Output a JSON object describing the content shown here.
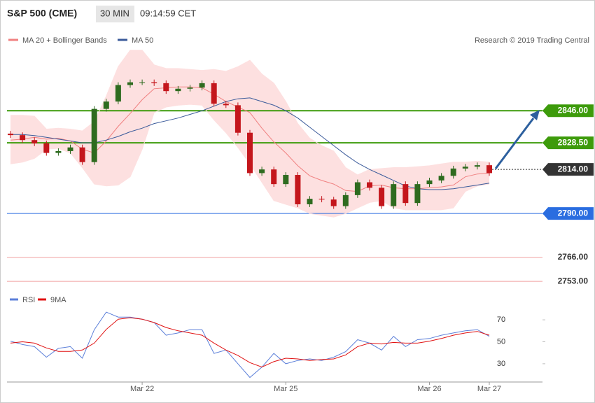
{
  "header": {
    "title": "S&P 500 (CME)",
    "timeframe": "30 MIN",
    "time": "09:14:59 CET"
  },
  "chart_data": [
    {
      "type": "candlestick",
      "credit": "Research © 2019 Trading Central",
      "ylim": [
        2750,
        2893
      ],
      "up_color": "#2e6b1f",
      "down_color": "#c4161c",
      "open": [
        2833.5,
        2832.7,
        2830,
        2828.2,
        2823,
        2824,
        2826,
        2818,
        2847,
        2851,
        2860,
        2861.5,
        2861.5,
        2861,
        2856.7,
        2858,
        2858.6,
        2861,
        2849.8,
        2849,
        2834,
        2812,
        2814,
        2806,
        2811,
        2795,
        2798,
        2797.6,
        2794,
        2800,
        2807,
        2804,
        2794,
        2806,
        2795.7,
        2806,
        2808,
        2810.5,
        2814.5,
        2815.5,
        2816.3
      ],
      "high": [
        2835,
        2834.2,
        2831.5,
        2829.7,
        2825.5,
        2827.5,
        2827.5,
        2848.5,
        2852.5,
        2861.5,
        2863,
        2863,
        2863,
        2862.5,
        2859.5,
        2860.1,
        2862.5,
        2862.5,
        2851.3,
        2850.5,
        2835.5,
        2815.5,
        2815.5,
        2812.5,
        2812.5,
        2799.5,
        2799.5,
        2799.1,
        2801.5,
        2808.5,
        2808.5,
        2805.5,
        2807.5,
        2807.5,
        2807.5,
        2809.5,
        2812,
        2816,
        2817,
        2817.8,
        2817.8
      ],
      "low": [
        2831.2,
        2828.5,
        2826.7,
        2821.5,
        2821.5,
        2822.5,
        2816.5,
        2816.5,
        2845.5,
        2849.5,
        2858.5,
        2860,
        2859.5,
        2855.2,
        2855.2,
        2856.5,
        2857.1,
        2848.3,
        2847.5,
        2832.5,
        2810.5,
        2810.5,
        2804.5,
        2804.5,
        2793.5,
        2793.5,
        2796.1,
        2792.5,
        2792.5,
        2798.5,
        2802.5,
        2792.5,
        2792.5,
        2794.2,
        2794.2,
        2804.5,
        2806.5,
        2809,
        2813,
        2814,
        2810.5
      ],
      "close": [
        2832.7,
        2830,
        2828.2,
        2823,
        2824,
        2826,
        2818,
        2847,
        2851,
        2860,
        2861.5,
        2861.5,
        2861,
        2856.7,
        2858,
        2858.6,
        2861,
        2849.8,
        2849,
        2834,
        2812,
        2814,
        2806,
        2811,
        2795,
        2798,
        2797.6,
        2794,
        2800,
        2807,
        2804,
        2794,
        2806,
        2795.7,
        2806,
        2808,
        2810.5,
        2814.5,
        2815.5,
        2816.3,
        2812
      ],
      "series": [
        {
          "name": "MA 20 + Bollinger Bands",
          "color": "#f08080",
          "band_color": "#fde0e0",
          "values": [
            2830,
            2830.5,
            2831.5,
            2830.5,
            2831,
            2829.5,
            2825,
            2823,
            2829.5,
            2837.5,
            2844.5,
            2852,
            2858,
            2858.5,
            2859,
            2859,
            2858.5,
            2855,
            2851,
            2848,
            2845,
            2836.5,
            2829,
            2823,
            2816,
            2810.5,
            2808,
            2806,
            2802.5,
            2802,
            2805,
            2805.5,
            2804,
            2803.5,
            2803.5,
            2804,
            2804.5,
            2805.5,
            2810,
            2811.5,
            2812
          ],
          "upper": [
            2843.5,
            2843.5,
            2843,
            2836,
            2836.5,
            2836,
            2835,
            2840,
            2854,
            2870,
            2879,
            2879,
            2871,
            2869,
            2869,
            2868.5,
            2868,
            2868.5,
            2867.5,
            2870,
            2873.5,
            2866,
            2861,
            2851,
            2839,
            2831,
            2827,
            2824,
            2815,
            2811,
            2814,
            2814.5,
            2815,
            2815,
            2815.5,
            2816,
            2817,
            2818,
            2818,
            2818.5,
            2818
          ],
          "lower": [
            2817,
            2818,
            2820,
            2825,
            2825.5,
            2823,
            2815,
            2806,
            2805,
            2805.5,
            2810,
            2825,
            2845,
            2848,
            2849,
            2849.5,
            2849,
            2841,
            2834,
            2826,
            2817,
            2807,
            2797,
            2795,
            2793,
            2790,
            2789,
            2788,
            2790,
            2793,
            2796,
            2797,
            2793,
            2792,
            2792,
            2792,
            2792,
            2793,
            2802,
            2805,
            2806
          ]
        },
        {
          "name": "MA 50",
          "color": "#3a5a9a",
          "values": [
            2833,
            2833,
            2832.5,
            2831.5,
            2830.5,
            2829.5,
            2828.5,
            2828.5,
            2830,
            2832,
            2834.5,
            2836.5,
            2839,
            2840.5,
            2842,
            2844,
            2846,
            2848.5,
            2851,
            2852.5,
            2853,
            2851,
            2849,
            2846,
            2842,
            2837,
            2832,
            2827,
            2822,
            2817.5,
            2814,
            2811,
            2808,
            2805,
            2803.5,
            2803,
            2803,
            2803.5,
            2804.5,
            2805.5,
            2806.5
          ]
        }
      ],
      "levels": [
        {
          "value": 2846,
          "label": "2846.00",
          "color": "#3d9b0b",
          "boxed": true,
          "width": 2
        },
        {
          "value": 2828.5,
          "label": "2828.50",
          "color": "#3d9b0b",
          "boxed": true,
          "width": 2
        },
        {
          "value": 2814,
          "label": "2814.00",
          "color": "#333333",
          "boxed": true,
          "width": 1,
          "dotted": true
        },
        {
          "value": 2790,
          "label": "2790.00",
          "color": "#2a6de0",
          "boxed": true,
          "width": 1
        },
        {
          "value": 2766,
          "label": "2766.00",
          "color": "#f0a0a0",
          "boxed": false,
          "width": 1
        },
        {
          "value": 2753,
          "label": "2753.00",
          "color": "#f0a0a0",
          "boxed": false,
          "width": 1
        }
      ]
    },
    {
      "type": "line",
      "categories": [
        null,
        null,
        null,
        null,
        null,
        null,
        null,
        null,
        null,
        null,
        null,
        "Mar 22",
        null,
        null,
        null,
        null,
        null,
        null,
        null,
        null,
        null,
        null,
        null,
        "Mar 25",
        null,
        null,
        null,
        null,
        null,
        null,
        null,
        null,
        null,
        null,
        null,
        "Mar 26",
        null,
        null,
        null,
        null,
        "Mar 27"
      ],
      "ylim": [
        14,
        86
      ],
      "yticks": [
        30,
        50,
        70
      ],
      "series": [
        {
          "name": "RSI",
          "color": "#5b7fd9",
          "values": [
            50.6,
            47.5,
            45.6,
            36,
            44,
            45.6,
            35,
            61,
            77,
            72.5,
            72.5,
            70.6,
            67.5,
            56,
            58,
            61,
            61,
            39.4,
            42.5,
            30,
            17.5,
            26.9,
            39.4,
            30,
            33,
            34.4,
            33,
            36,
            41,
            51.9,
            48.8,
            42.5,
            55,
            45.6,
            51.9,
            53,
            56,
            58,
            60,
            61,
            55
          ]
        },
        {
          "name": "9MA",
          "color": "#e01010",
          "values": [
            48.8,
            50,
            48.8,
            44.4,
            41.3,
            41.3,
            42.5,
            48.8,
            61.3,
            70.6,
            71.9,
            70.6,
            67.5,
            63,
            60,
            58,
            56,
            48.8,
            42.5,
            37.5,
            31,
            27,
            31.9,
            35,
            34.4,
            33,
            33.8,
            34.4,
            38,
            45.6,
            48.8,
            48,
            49.4,
            48.8,
            48.8,
            50.6,
            53,
            56,
            58,
            59.4,
            56
          ]
        }
      ]
    }
  ]
}
